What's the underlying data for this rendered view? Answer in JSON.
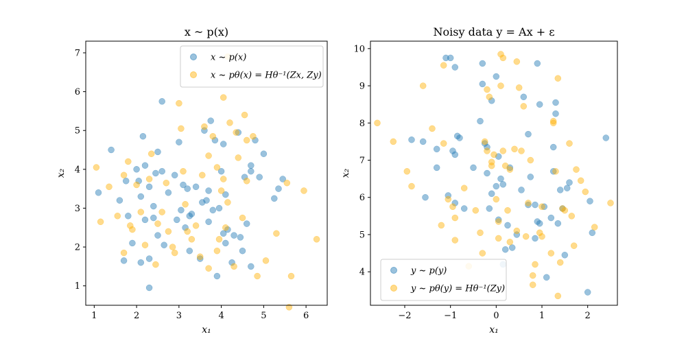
{
  "colors": {
    "blue": "#1f77b4",
    "orange": "#ffb000"
  },
  "chart_data": [
    {
      "type": "scatter",
      "title": "x ~ p(x)",
      "xlabel": "x₁",
      "ylabel": "x₂",
      "xlim": [
        0.8,
        6.5
      ],
      "ylim": [
        0.5,
        7.3
      ],
      "xticks": [
        1,
        2,
        3,
        4,
        5,
        6
      ],
      "yticks": [
        1,
        2,
        3,
        4,
        5,
        6,
        7
      ],
      "legend_position": "top-right",
      "series": [
        {
          "name": "x ~ p(x)",
          "color": "#1f77b4",
          "points": [
            [
              1.1,
              3.4
            ],
            [
              1.4,
              4.5
            ],
            [
              1.6,
              3.2
            ],
            [
              1.7,
              1.65
            ],
            [
              1.75,
              3.7
            ],
            [
              1.8,
              2.8
            ],
            [
              1.9,
              2.1
            ],
            [
              2.0,
              4.0
            ],
            [
              2.05,
              3.7
            ],
            [
              2.1,
              3.3
            ],
            [
              2.15,
              4.85
            ],
            [
              2.1,
              1.6
            ],
            [
              2.2,
              2.7
            ],
            [
              2.3,
              1.7
            ],
            [
              2.3,
              0.95
            ],
            [
              2.3,
              3.55
            ],
            [
              2.4,
              3.05
            ],
            [
              2.4,
              2.75
            ],
            [
              2.45,
              3.9
            ],
            [
              2.5,
              2.3
            ],
            [
              2.5,
              4.45
            ],
            [
              2.6,
              5.75
            ],
            [
              2.6,
              3.95
            ],
            [
              2.65,
              2.05
            ],
            [
              2.75,
              3.4
            ],
            [
              2.9,
              3.85
            ],
            [
              2.95,
              2.7
            ],
            [
              3.0,
              4.7
            ],
            [
              3.05,
              2.95
            ],
            [
              3.1,
              3.6
            ],
            [
              3.15,
              2.5
            ],
            [
              3.2,
              3.5
            ],
            [
              3.25,
              1.9
            ],
            [
              3.25,
              2.8
            ],
            [
              3.3,
              2.85
            ],
            [
              3.5,
              1.7
            ],
            [
              3.55,
              3.15
            ],
            [
              3.6,
              5.0
            ],
            [
              3.65,
              3.2
            ],
            [
              3.7,
              2.65
            ],
            [
              3.7,
              3.45
            ],
            [
              3.75,
              5.25
            ],
            [
              3.8,
              2.95
            ],
            [
              3.85,
              4.75
            ],
            [
              3.9,
              1.25
            ],
            [
              3.95,
              3.0
            ],
            [
              4.0,
              3.95
            ],
            [
              4.05,
              4.65
            ],
            [
              4.1,
              3.35
            ],
            [
              4.1,
              2.1
            ],
            [
              4.15,
              2.45
            ],
            [
              4.25,
              1.6
            ],
            [
              4.3,
              2.3
            ],
            [
              4.4,
              4.95
            ],
            [
              4.45,
              2.25
            ],
            [
              4.5,
              1.9
            ],
            [
              4.55,
              3.8
            ],
            [
              4.6,
              2.6
            ],
            [
              4.7,
              4.1
            ],
            [
              4.7,
              1.5
            ],
            [
              4.8,
              4.75
            ],
            [
              4.9,
              3.8
            ],
            [
              5.0,
              4.4
            ],
            [
              5.25,
              3.25
            ],
            [
              5.35,
              3.5
            ],
            [
              5.45,
              3.75
            ],
            [
              4.7,
              3.95
            ],
            [
              2.2,
              4.1
            ],
            [
              3.4,
              3.55
            ],
            [
              4.05,
              2.35
            ]
          ]
        },
        {
          "name": "x ~ pθ(x) = Hθ⁻¹(Zx, Zy)",
          "color": "#ffb000",
          "points": [
            [
              1.05,
              4.05
            ],
            [
              1.15,
              2.65
            ],
            [
              1.35,
              3.55
            ],
            [
              1.55,
              2.8
            ],
            [
              1.7,
              1.85
            ],
            [
              1.7,
              3.85
            ],
            [
              1.8,
              4.2
            ],
            [
              1.85,
              2.55
            ],
            [
              1.9,
              2.45
            ],
            [
              2.0,
              3.6
            ],
            [
              2.1,
              2.9
            ],
            [
              2.2,
              2.05
            ],
            [
              2.3,
              3.75
            ],
            [
              2.35,
              4.4
            ],
            [
              2.45,
              1.55
            ],
            [
              2.5,
              2.6
            ],
            [
              2.6,
              2.9
            ],
            [
              2.7,
              3.65
            ],
            [
              2.75,
              2.4
            ],
            [
              2.85,
              2.0
            ],
            [
              2.9,
              1.85
            ],
            [
              3.0,
              5.7
            ],
            [
              3.05,
              5.05
            ],
            [
              3.1,
              3.95
            ],
            [
              3.15,
              3.1
            ],
            [
              3.2,
              2.4
            ],
            [
              3.3,
              2.2
            ],
            [
              3.4,
              2.55
            ],
            [
              3.5,
              1.75
            ],
            [
              3.55,
              3.85
            ],
            [
              3.6,
              5.1
            ],
            [
              3.7,
              4.35
            ],
            [
              3.7,
              1.45
            ],
            [
              3.8,
              4.85
            ],
            [
              3.9,
              1.9
            ],
            [
              3.95,
              2.2
            ],
            [
              4.0,
              3.45
            ],
            [
              4.05,
              5.85
            ],
            [
              4.1,
              2.5
            ],
            [
              4.15,
              3.15
            ],
            [
              4.2,
              5.2
            ],
            [
              4.3,
              1.5
            ],
            [
              4.35,
              4.95
            ],
            [
              4.4,
              4.3
            ],
            [
              4.5,
              2.75
            ],
            [
              4.55,
              5.4
            ],
            [
              4.6,
              3.7
            ],
            [
              4.75,
              4.85
            ],
            [
              4.85,
              1.25
            ],
            [
              5.05,
              1.65
            ],
            [
              5.3,
              2.35
            ],
            [
              5.55,
              3.65
            ],
            [
              5.6,
              0.45
            ],
            [
              5.65,
              1.25
            ],
            [
              5.95,
              3.45
            ],
            [
              6.25,
              2.2
            ],
            [
              4.15,
              6.9
            ],
            [
              3.9,
              4.05
            ],
            [
              4.6,
              4.75
            ],
            [
              4.05,
              3.75
            ]
          ]
        }
      ]
    },
    {
      "type": "scatter",
      "title": "Noisy data y = Ax + ε",
      "xlabel": "x₁",
      "ylabel": "x₂",
      "xlim": [
        -2.75,
        2.65
      ],
      "ylim": [
        3.1,
        10.2
      ],
      "xticks": [
        -2,
        -1,
        0,
        1,
        2
      ],
      "yticks": [
        4,
        5,
        6,
        7,
        8,
        9,
        10
      ],
      "legend_position": "lower-left",
      "series": [
        {
          "name": "y ~ p(y)",
          "color": "#1f77b4",
          "points": [
            [
              -1.85,
              7.55
            ],
            [
              -1.6,
              7.5
            ],
            [
              -1.55,
              6.0
            ],
            [
              -1.3,
              7.3
            ],
            [
              -1.3,
              6.8
            ],
            [
              -1.1,
              9.75
            ],
            [
              -1.0,
              9.75
            ],
            [
              -0.9,
              9.5
            ],
            [
              -0.95,
              7.25
            ],
            [
              -0.9,
              7.15
            ],
            [
              -0.9,
              5.85
            ],
            [
              -0.8,
              7.6
            ],
            [
              -0.7,
              5.7
            ],
            [
              -0.5,
              6.8
            ],
            [
              -0.35,
              8.05
            ],
            [
              -0.3,
              9.05
            ],
            [
              -0.3,
              9.6
            ],
            [
              -0.2,
              7.35
            ],
            [
              -0.1,
              8.6
            ],
            [
              -0.2,
              6.65
            ],
            [
              -0.15,
              5.7
            ],
            [
              -0.1,
              6.1
            ],
            [
              0.0,
              6.3
            ],
            [
              0.05,
              7.1
            ],
            [
              0.0,
              9.25
            ],
            [
              0.05,
              5.4
            ],
            [
              0.1,
              6.5
            ],
            [
              0.15,
              6.35
            ],
            [
              0.15,
              4.2
            ],
            [
              0.2,
              4.6
            ],
            [
              0.25,
              5.25
            ],
            [
              0.3,
              6.8
            ],
            [
              0.35,
              4.65
            ],
            [
              0.45,
              5.0
            ],
            [
              0.6,
              8.7
            ],
            [
              0.7,
              5.8
            ],
            [
              0.7,
              7.7
            ],
            [
              0.75,
              6.55
            ],
            [
              0.85,
              4.9
            ],
            [
              0.9,
              9.6
            ],
            [
              0.95,
              5.3
            ],
            [
              0.95,
              8.5
            ],
            [
              1.05,
              5.75
            ],
            [
              1.1,
              3.85
            ],
            [
              1.2,
              5.45
            ],
            [
              1.25,
              7.35
            ],
            [
              1.25,
              6.7
            ],
            [
              1.3,
              8.55
            ],
            [
              1.3,
              8.25
            ],
            [
              1.35,
              5.3
            ],
            [
              1.4,
              6.2
            ],
            [
              1.45,
              5.7
            ],
            [
              1.5,
              4.45
            ],
            [
              1.55,
              6.25
            ],
            [
              1.6,
              6.4
            ],
            [
              2.0,
              3.45
            ],
            [
              2.05,
              5.9
            ],
            [
              2.1,
              5.05
            ],
            [
              2.4,
              7.6
            ],
            [
              0.85,
              5.8
            ],
            [
              -0.25,
              7.45
            ],
            [
              0.55,
              6.2
            ],
            [
              -0.85,
              7.65
            ],
            [
              0.9,
              5.35
            ],
            [
              -1.05,
              6.05
            ]
          ]
        },
        {
          "name": "y ~ pθ(y) = Hθ⁻¹(Zy)",
          "color": "#ffb000",
          "points": [
            [
              -2.6,
              8.0
            ],
            [
              -2.25,
              7.5
            ],
            [
              -1.95,
              6.7
            ],
            [
              -1.85,
              6.3
            ],
            [
              -1.6,
              9.0
            ],
            [
              -1.4,
              7.85
            ],
            [
              -1.15,
              9.55
            ],
            [
              -1.15,
              7.45
            ],
            [
              -1.2,
              5.25
            ],
            [
              -1.05,
              5.95
            ],
            [
              -0.95,
              5.75
            ],
            [
              -0.9,
              5.45
            ],
            [
              -0.9,
              4.85
            ],
            [
              -0.7,
              6.25
            ],
            [
              -0.6,
              4.15
            ],
            [
              -0.35,
              5.05
            ],
            [
              -0.3,
              4.5
            ],
            [
              -0.25,
              7.5
            ],
            [
              -0.2,
              7.25
            ],
            [
              -0.2,
              8.9
            ],
            [
              -0.15,
              8.7
            ],
            [
              -0.1,
              6.95
            ],
            [
              -0.1,
              6.85
            ],
            [
              -0.05,
              7.15
            ],
            [
              0.0,
              5.95
            ],
            [
              0.05,
              5.35
            ],
            [
              0.05,
              4.9
            ],
            [
              0.1,
              9.85
            ],
            [
              0.1,
              9.0
            ],
            [
              0.15,
              9.75
            ],
            [
              0.15,
              7.25
            ],
            [
              0.2,
              6.85
            ],
            [
              0.25,
              5.65
            ],
            [
              0.3,
              6.75
            ],
            [
              0.3,
              4.8
            ],
            [
              0.4,
              7.3
            ],
            [
              0.45,
              9.65
            ],
            [
              0.45,
              5.1
            ],
            [
              0.5,
              8.95
            ],
            [
              0.55,
              7.25
            ],
            [
              0.6,
              8.45
            ],
            [
              0.65,
              4.95
            ],
            [
              0.7,
              5.85
            ],
            [
              0.75,
              7.0
            ],
            [
              0.8,
              3.9
            ],
            [
              0.8,
              3.65
            ],
            [
              0.85,
              4.2
            ],
            [
              0.95,
              5.05
            ],
            [
              1.0,
              4.95
            ],
            [
              1.0,
              5.75
            ],
            [
              1.2,
              4.5
            ],
            [
              1.25,
              8.05
            ],
            [
              1.3,
              6.7
            ],
            [
              1.35,
              9.2
            ],
            [
              1.35,
              3.35
            ],
            [
              1.4,
              4.25
            ],
            [
              1.45,
              5.7
            ],
            [
              1.5,
              5.65
            ],
            [
              1.6,
              7.45
            ],
            [
              1.65,
              5.5
            ],
            [
              1.7,
              4.7
            ],
            [
              1.75,
              6.75
            ],
            [
              1.85,
              6.45
            ],
            [
              1.95,
              6.15
            ],
            [
              2.15,
              5.2
            ],
            [
              2.5,
              5.85
            ],
            [
              1.25,
              8.0
            ],
            [
              -0.45,
              5.65
            ]
          ]
        }
      ]
    }
  ]
}
